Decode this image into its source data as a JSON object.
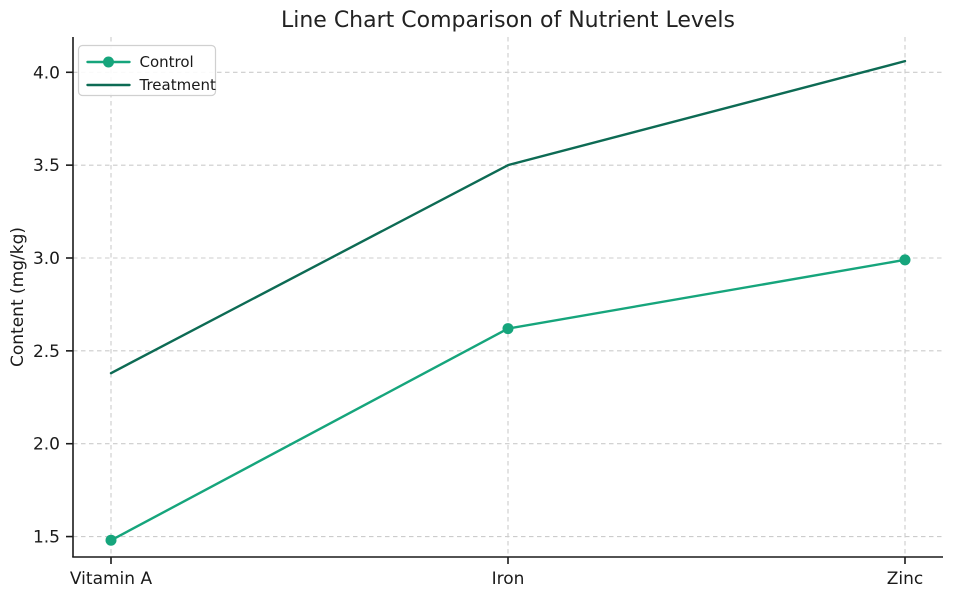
{
  "chart_data": {
    "type": "line",
    "title": "Line Chart Comparison of Nutrient Levels",
    "xlabel": "",
    "ylabel": "Content (mg/kg)",
    "categories": [
      "Vitamin A",
      "Iron",
      "Zinc"
    ],
    "series": [
      {
        "name": "Control",
        "values": [
          1.48,
          2.62,
          2.99
        ],
        "color": "#16a57c",
        "marker": "circle",
        "marker_radius": 5.5,
        "line_width": 2.4
      },
      {
        "name": "Treatment",
        "values": [
          2.38,
          3.5,
          4.06
        ],
        "color": "#0d6b54",
        "marker": "none",
        "marker_radius": 0,
        "line_width": 2.4
      }
    ],
    "y_ticks": [
      1.5,
      2.0,
      2.5,
      3.0,
      3.5,
      4.0
    ],
    "ylim": [
      1.39,
      4.19
    ],
    "grid": true,
    "grid_style": "dashed",
    "legend_position": "upper-left"
  },
  "style": {
    "grid_color": "#cccccc",
    "spine_color": "#1a1a1a",
    "legend_border_color": "#d0d0d0",
    "legend_bg_color": "#ffffff",
    "background_color": "#ffffff"
  }
}
